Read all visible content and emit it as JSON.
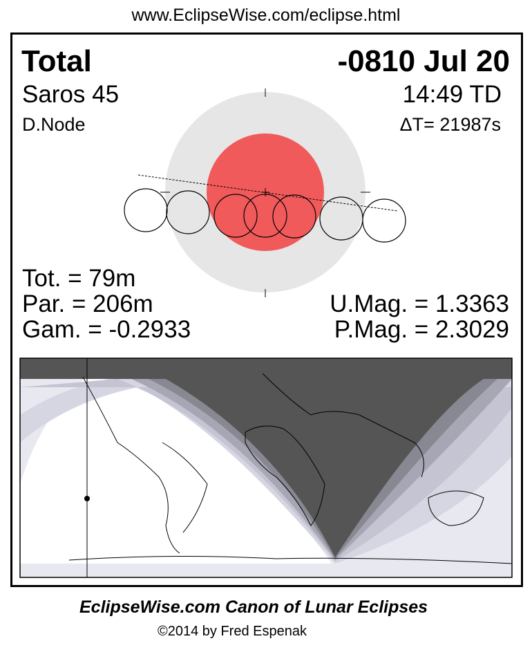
{
  "url": "www.EclipseWise.com/eclipse.html",
  "eclipse_type": "Total",
  "date": "-0810 Jul 20",
  "saros": "Saros  45",
  "time": "14:49 TD",
  "node": "D.Node",
  "delta_t": "ΔT=  21987s",
  "totality": "Tot. =  79m",
  "partial": "Par. = 206m",
  "gamma": "Gam. = -0.2933",
  "umbral_mag": "U.Mag. = 1.3363",
  "penumbral_mag": "P.Mag. = 2.3029",
  "footer_title": "EclipseWise.com Canon of Lunar Eclipses",
  "footer_copyright": "©2014 by Fred Espenak",
  "colors": {
    "penumbra": "#e6e6e6",
    "umbra": "#f05a5a",
    "map_night": "#555555",
    "map_bands": [
      "#e8e8f0",
      "#d6d6e2",
      "#c4c4d2",
      "#a6a6b4",
      "#888892"
    ]
  }
}
